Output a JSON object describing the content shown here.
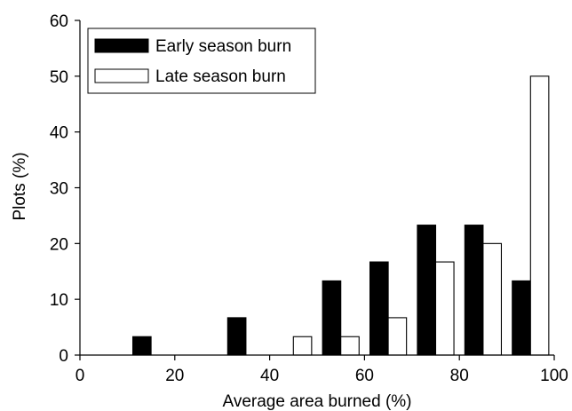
{
  "chart_data": {
    "type": "bar",
    "xlabel": "Average area burned (%)",
    "ylabel": "Plots (%)",
    "xlim": [
      0,
      100
    ],
    "ylim": [
      0,
      60
    ],
    "x_ticks": [
      "0",
      "20",
      "40",
      "60",
      "80",
      "100"
    ],
    "y_ticks": [
      "0",
      "10",
      "20",
      "30",
      "40",
      "50",
      "60"
    ],
    "bin_centers": [
      15,
      25,
      35,
      45,
      55,
      65,
      75,
      85,
      95
    ],
    "series": [
      {
        "name": "Early season burn",
        "fill": "#000000",
        "values": [
          3.3,
          0,
          6.7,
          0,
          13.3,
          16.7,
          23.3,
          23.3,
          13.3
        ]
      },
      {
        "name": "Late season burn",
        "fill": "#ffffff",
        "values": [
          0,
          0,
          0,
          3.3,
          3.3,
          6.7,
          16.7,
          20.0,
          50.0
        ]
      }
    ],
    "legend_position": "top-left",
    "grid": false
  }
}
